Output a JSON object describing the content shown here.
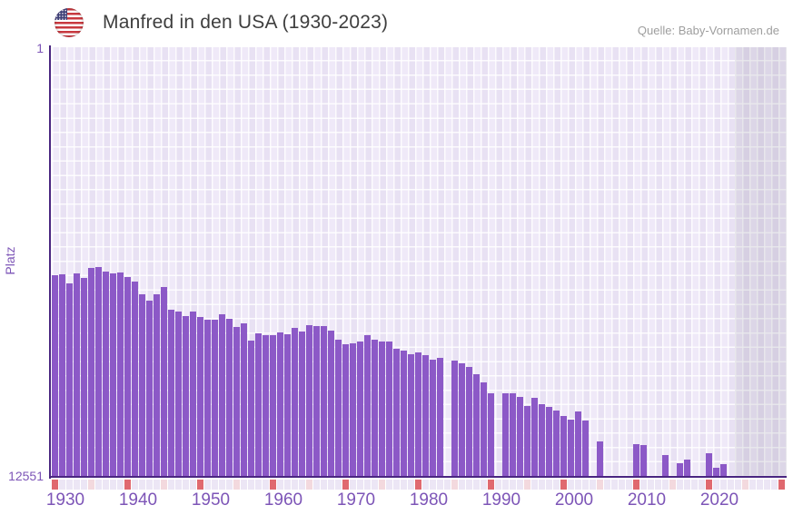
{
  "header": {
    "title": "Manfred in den USA (1930-2023)",
    "source": "Quelle: Baby-Vornamen.de"
  },
  "chart_data": {
    "type": "bar",
    "title": "Manfred in den USA (1930-2023)",
    "ylabel": "Platz",
    "y_axis": {
      "top_label": "1",
      "bottom_label": "12551",
      "min": 1,
      "max": 12551,
      "inverted": true
    },
    "x_axis": {
      "start_year": 1930,
      "end_year": 2023,
      "grid_end_year": 2030,
      "tick_years": [
        1930,
        1940,
        1950,
        1960,
        1970,
        1980,
        1990,
        2000,
        2010,
        2020
      ]
    },
    "values": [
      6660,
      6635,
      6900,
      6605,
      6740,
      6450,
      6420,
      6555,
      6605,
      6570,
      6715,
      6845,
      7210,
      7395,
      7215,
      7015,
      7660,
      7715,
      7855,
      7715,
      7890,
      7970,
      7950,
      7795,
      7935,
      8165,
      8065,
      8570,
      8360,
      8420,
      8420,
      8340,
      8375,
      8205,
      8295,
      8125,
      8145,
      8145,
      8280,
      8535,
      8670,
      8640,
      8590,
      8425,
      8535,
      8595,
      8595,
      8800,
      8860,
      8960,
      8925,
      8995,
      9120,
      9075,
      null,
      9160,
      9230,
      9345,
      9560,
      9785,
      10105,
      null,
      10110,
      10110,
      10215,
      10475,
      10250,
      10430,
      10500,
      10615,
      10785,
      10870,
      10650,
      10915,
      null,
      11515,
      null,
      null,
      null,
      null,
      11590,
      11620,
      null,
      null,
      11920,
      null,
      12160,
      12055,
      null,
      null,
      11870,
      12285,
      12190,
      null
    ],
    "colors": {
      "bar": "#8c59c7",
      "axis": "#4a2681",
      "tick_label": "#7d55b7",
      "strip_cell": "#ece6f5",
      "strip_half_decade": "#f3d9de",
      "strip_decade": "#e0696f"
    }
  }
}
